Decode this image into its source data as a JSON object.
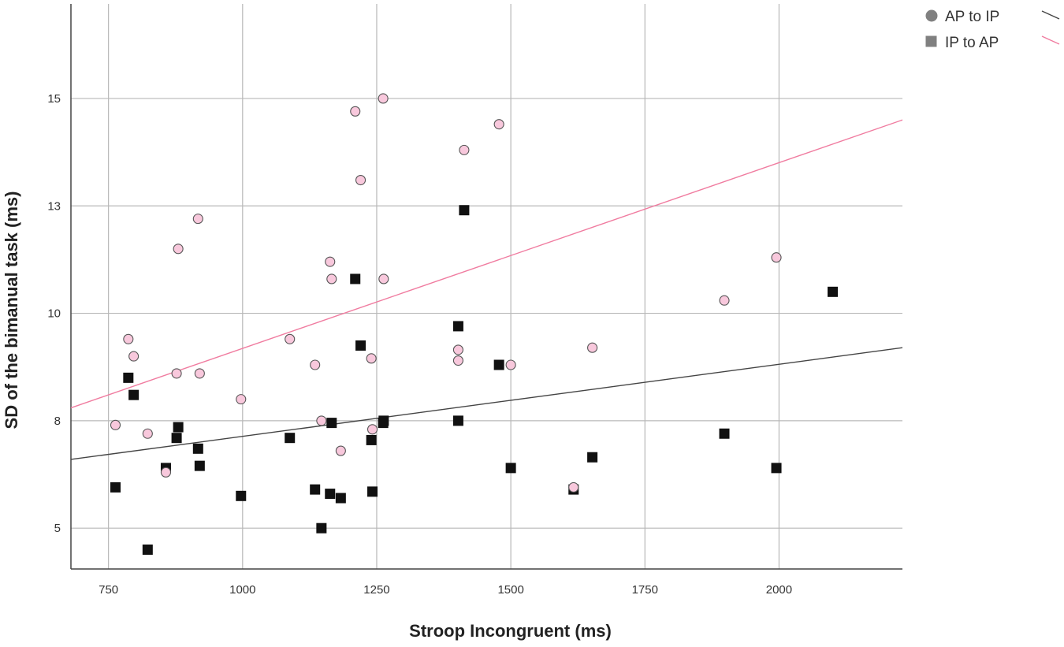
{
  "chart_data": {
    "type": "scatter",
    "title": "",
    "xlabel": "Stroop Incongruent (ms)",
    "ylabel": "SD of the bimanual task (ms)",
    "xlim": [
      680,
      2230
    ],
    "ylim": [
      4.05,
      17.2
    ],
    "x_ticks": [
      750,
      1000,
      1250,
      1500,
      1750,
      2000
    ],
    "x_tick_labels": [
      "750",
      "1000",
      "1250",
      "1500",
      "1750",
      "2000"
    ],
    "y_ticks": [
      5,
      7.5,
      10,
      12.5,
      15
    ],
    "y_tick_labels": [
      "5",
      "8",
      "10",
      "13",
      "15"
    ],
    "grid": true,
    "legend_position": "top-right",
    "series": [
      {
        "name": "AP to IP",
        "marker": "circle",
        "fill": "#f8c8dc",
        "stroke": "#555555",
        "fit_color": "#444444",
        "fit_line": {
          "x": [
            680,
            2230
          ],
          "y": [
            6.6,
            9.2
          ]
        },
        "points": [
          [
            763,
            7.4
          ],
          [
            787,
            9.4
          ],
          [
            797,
            9.0
          ],
          [
            823,
            7.2
          ],
          [
            857,
            6.3
          ],
          [
            877,
            8.6
          ],
          [
            880,
            11.5
          ],
          [
            917,
            12.2
          ],
          [
            920,
            8.6
          ],
          [
            997,
            8.0
          ],
          [
            1088,
            9.4
          ],
          [
            1135,
            8.8
          ],
          [
            1147,
            7.5
          ],
          [
            1163,
            11.2
          ],
          [
            1166,
            10.8
          ],
          [
            1183,
            6.8
          ],
          [
            1210,
            14.7
          ],
          [
            1220,
            13.1
          ],
          [
            1240,
            8.95
          ],
          [
            1242,
            7.3
          ],
          [
            1262,
            15.0
          ],
          [
            1263,
            10.8
          ],
          [
            1402,
            9.15
          ],
          [
            1402,
            8.9
          ],
          [
            1413,
            13.8
          ],
          [
            1478,
            14.4
          ],
          [
            1500,
            8.8
          ],
          [
            1617,
            5.95
          ],
          [
            1652,
            9.2
          ],
          [
            1898,
            10.3
          ],
          [
            1995,
            11.3
          ]
        ]
      },
      {
        "name": "IP to AP",
        "marker": "square",
        "fill": "#111111",
        "stroke": "#111111",
        "fit_color": "#f07ca0",
        "fit_line": {
          "x": [
            680,
            2230
          ],
          "y": [
            7.8,
            14.5
          ]
        },
        "points": [
          [
            763,
            5.95
          ],
          [
            787,
            8.5
          ],
          [
            797,
            8.1
          ],
          [
            823,
            4.5
          ],
          [
            857,
            6.4
          ],
          [
            877,
            7.1
          ],
          [
            880,
            7.35
          ],
          [
            917,
            6.85
          ],
          [
            920,
            6.45
          ],
          [
            997,
            5.75
          ],
          [
            1088,
            7.1
          ],
          [
            1135,
            5.9
          ],
          [
            1147,
            5.0
          ],
          [
            1163,
            5.8
          ],
          [
            1166,
            7.45
          ],
          [
            1183,
            5.7
          ],
          [
            1210,
            10.8
          ],
          [
            1220,
            9.25
          ],
          [
            1240,
            7.05
          ],
          [
            1242,
            5.85
          ],
          [
            1262,
            7.45
          ],
          [
            1263,
            7.5
          ],
          [
            1402,
            9.7
          ],
          [
            1402,
            7.5
          ],
          [
            1413,
            12.4
          ],
          [
            1478,
            8.8
          ],
          [
            1500,
            6.4
          ],
          [
            1617,
            5.9
          ],
          [
            1652,
            6.65
          ],
          [
            1898,
            7.2
          ],
          [
            1995,
            6.4
          ],
          [
            2100,
            10.5
          ]
        ]
      }
    ]
  }
}
